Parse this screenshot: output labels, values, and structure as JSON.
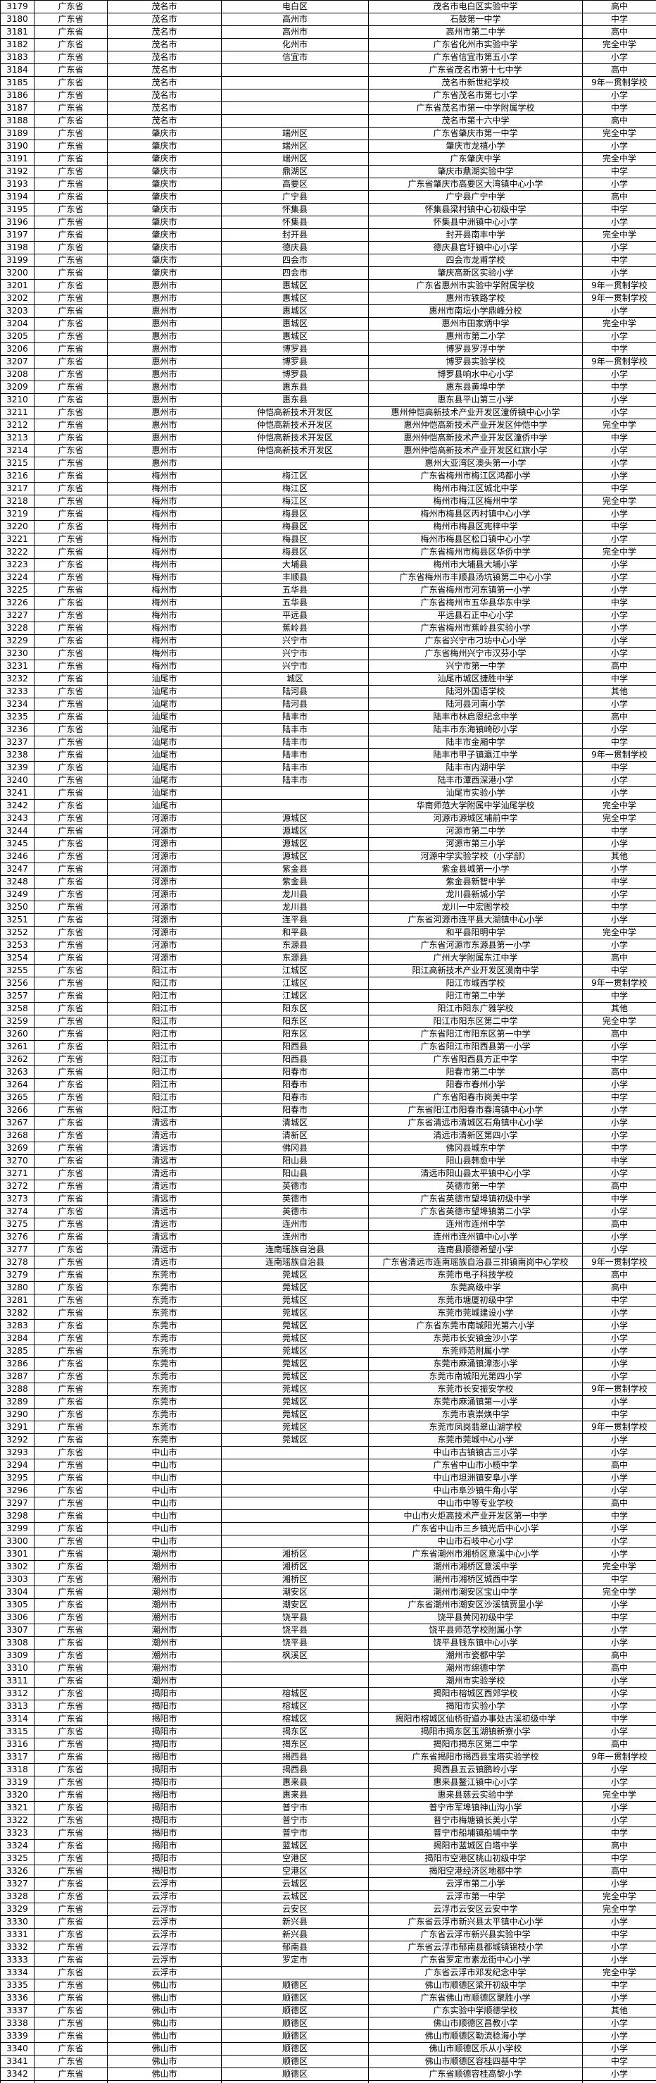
{
  "page": {
    "background_color": "#ffffff",
    "grid_color": "#000000",
    "text_color": "#000000"
  },
  "table": {
    "column_keys": [
      "index",
      "province",
      "city",
      "district",
      "school_name",
      "school_type"
    ],
    "rows": [
      [
        3179,
        "广东省",
        "茂名市",
        "电白区",
        "茂名市电白区实验中学",
        "高中"
      ],
      [
        3180,
        "广东省",
        "茂名市",
        "高州市",
        "石鼓第一中学",
        "中学"
      ],
      [
        3181,
        "广东省",
        "茂名市",
        "高州市",
        "高州市第二中学",
        "高中"
      ],
      [
        3182,
        "广东省",
        "茂名市",
        "化州市",
        "广东省化州市实验中学",
        "完全中学"
      ],
      [
        3183,
        "广东省",
        "茂名市",
        "信宜市",
        "广东省信宜市第五小学",
        "小学"
      ],
      [
        3184,
        "广东省",
        "茂名市",
        "",
        "广东省茂名市第十七中学",
        "高中"
      ],
      [
        3185,
        "广东省",
        "茂名市",
        "",
        "茂名市新世纪学校",
        "9年一贯制学校"
      ],
      [
        3186,
        "广东省",
        "茂名市",
        "",
        "广东省茂名市第七小学",
        "小学"
      ],
      [
        3187,
        "广东省",
        "茂名市",
        "",
        "广东省茂名市第一中学附属学校",
        "中学"
      ],
      [
        3188,
        "广东省",
        "茂名市",
        "",
        "茂名市第十六中学",
        "高中"
      ],
      [
        3189,
        "广东省",
        "肇庆市",
        "端州区",
        "广东省肇庆市第一中学",
        "完全中学"
      ],
      [
        3190,
        "广东省",
        "肇庆市",
        "端州区",
        "肇庆市龙禧小学",
        "小学"
      ],
      [
        3191,
        "广东省",
        "肇庆市",
        "端州区",
        "广东肇庆中学",
        "完全中学"
      ],
      [
        3192,
        "广东省",
        "肇庆市",
        "鼎湖区",
        "肇庆市鼎湖实验中学",
        "中学"
      ],
      [
        3193,
        "广东省",
        "肇庆市",
        "高要区",
        "广东省肇庆市高要区大湾镇中心小学",
        "小学"
      ],
      [
        3194,
        "广东省",
        "肇庆市",
        "广宁县",
        "广宁县广宁中学",
        "高中"
      ],
      [
        3195,
        "广东省",
        "肇庆市",
        "怀集县",
        "怀集县梁村镇中心初级中学",
        "中学"
      ],
      [
        3196,
        "广东省",
        "肇庆市",
        "怀集县",
        "怀集县中洲镇中心小学",
        "小学"
      ],
      [
        3197,
        "广东省",
        "肇庆市",
        "封开县",
        "封开县南丰中学",
        "完全中学"
      ],
      [
        3198,
        "广东省",
        "肇庆市",
        "德庆县",
        "德庆县官圩镇中心小学",
        "小学"
      ],
      [
        3199,
        "广东省",
        "肇庆市",
        "四会市",
        "四会市龙甫学校",
        "中学"
      ],
      [
        3200,
        "广东省",
        "肇庆市",
        "四会市",
        "肇庆高新区实验小学",
        "小学"
      ],
      [
        3201,
        "广东省",
        "惠州市",
        "惠城区",
        "广东省惠州市实验中学附属学校",
        "9年一贯制学校"
      ],
      [
        3202,
        "广东省",
        "惠州市",
        "惠城区",
        "惠州市铁路学校",
        "9年一贯制学校"
      ],
      [
        3203,
        "广东省",
        "惠州市",
        "惠城区",
        "惠州市南坛小学鼎峰分校",
        "小学"
      ],
      [
        3204,
        "广东省",
        "惠州市",
        "惠城区",
        "惠州市田家炳中学",
        "完全中学"
      ],
      [
        3205,
        "广东省",
        "惠州市",
        "惠城区",
        "惠州市第二小学",
        "小学"
      ],
      [
        3206,
        "广东省",
        "惠州市",
        "博罗县",
        "博罗县罗浮中学",
        "中学"
      ],
      [
        3207,
        "广东省",
        "惠州市",
        "博罗县",
        "博罗县实验学校",
        "9年一贯制学校"
      ],
      [
        3208,
        "广东省",
        "惠州市",
        "博罗县",
        "博罗县响水中心小学",
        "小学"
      ],
      [
        3209,
        "广东省",
        "惠州市",
        "惠东县",
        "惠东县黄埠中学",
        "中学"
      ],
      [
        3210,
        "广东省",
        "惠州市",
        "惠东县",
        "惠东县平山第三小学",
        "小学"
      ],
      [
        3211,
        "广东省",
        "惠州市",
        "仲恺高新技术开发区",
        "惠州仲恺高新技术产业开发区潼侨镇中心小学",
        "小学"
      ],
      [
        3212,
        "广东省",
        "惠州市",
        "仲恺高新技术开发区",
        "惠州仲恺高新技术产业开发区仲恺中学",
        "完全中学"
      ],
      [
        3213,
        "广东省",
        "惠州市",
        "仲恺高新技术开发区",
        "惠州仲恺高新技术产业开发区潼侨中学",
        "中学"
      ],
      [
        3214,
        "广东省",
        "惠州市",
        "仲恺高新技术开发区",
        "惠州仲恺高新技术产业开发区红旗小学",
        "小学"
      ],
      [
        3215,
        "广东省",
        "惠州市",
        "",
        "惠州大亚湾区澳头第一小学",
        "小学"
      ],
      [
        3216,
        "广东省",
        "梅州市",
        "梅江区",
        "广东省梅州市梅江区鸿都小学",
        "小学"
      ],
      [
        3217,
        "广东省",
        "梅州市",
        "梅江区",
        "梅州市梅江区城北中学",
        "中学"
      ],
      [
        3218,
        "广东省",
        "梅州市",
        "梅江区",
        "梅州市梅江区梅州中学",
        "完全中学"
      ],
      [
        3219,
        "广东省",
        "梅州市",
        "梅县区",
        "梅州市梅县区丙村镇中心小学",
        "小学"
      ],
      [
        3220,
        "广东省",
        "梅州市",
        "梅县区",
        "梅州市梅县区宪梓中学",
        "中学"
      ],
      [
        3221,
        "广东省",
        "梅州市",
        "梅县区",
        "梅州市梅县区松口镇中心小学",
        "小学"
      ],
      [
        3222,
        "广东省",
        "梅州市",
        "梅县区",
        "广东省梅州市梅县区华侨中学",
        "完全中学"
      ],
      [
        3223,
        "广东省",
        "梅州市",
        "大埔县",
        "梅州市大埔县大埔小学",
        "小学"
      ],
      [
        3224,
        "广东省",
        "梅州市",
        "丰顺县",
        "广东省梅州市丰顺县汤坑镇第二中心小学",
        "小学"
      ],
      [
        3225,
        "广东省",
        "梅州市",
        "五华县",
        "广东省梅州市河东镇第一小学",
        "小学"
      ],
      [
        3226,
        "广东省",
        "梅州市",
        "五华县",
        "广东省梅州市五华县华东中学",
        "中学"
      ],
      [
        3227,
        "广东省",
        "梅州市",
        "平远县",
        "平远县石正中心小学",
        "小学"
      ],
      [
        3228,
        "广东省",
        "梅州市",
        "蕉岭县",
        "广东省梅州市蕉岭县实验小学",
        "小学"
      ],
      [
        3229,
        "广东省",
        "梅州市",
        "兴宁市",
        "广东省兴宁市刁坊中心小学",
        "小学"
      ],
      [
        3230,
        "广东省",
        "梅州市",
        "兴宁市",
        "广东省梅州兴宁市汉芬小学",
        "小学"
      ],
      [
        3231,
        "广东省",
        "梅州市",
        "兴宁市",
        "兴宁市第一中学",
        "高中"
      ],
      [
        3232,
        "广东省",
        "汕尾市",
        "城区",
        "汕尾市城区捷胜中学",
        "中学"
      ],
      [
        3233,
        "广东省",
        "汕尾市",
        "陆河县",
        "陆河外国语学校",
        "其他"
      ],
      [
        3234,
        "广东省",
        "汕尾市",
        "陆河县",
        "陆河县河南小学",
        "小学"
      ],
      [
        3235,
        "广东省",
        "汕尾市",
        "陆丰市",
        "陆丰市林启恩纪念中学",
        "高中"
      ],
      [
        3236,
        "广东省",
        "汕尾市",
        "陆丰市",
        "陆丰市东海镇崎砂小学",
        "小学"
      ],
      [
        3237,
        "广东省",
        "汕尾市",
        "陆丰市",
        "陆丰市金厢中学",
        "中学"
      ],
      [
        3238,
        "广东省",
        "汕尾市",
        "陆丰市",
        "陆丰市甲子镇瀛江中学",
        "9年一贯制学校"
      ],
      [
        3239,
        "广东省",
        "汕尾市",
        "陆丰市",
        "陆丰市内湖中学",
        "中学"
      ],
      [
        3240,
        "广东省",
        "汕尾市",
        "陆丰市",
        "陆丰市潭西深港小学",
        "小学"
      ],
      [
        3241,
        "广东省",
        "汕尾市",
        "",
        "汕尾市实验小学",
        "小学"
      ],
      [
        3242,
        "广东省",
        "汕尾市",
        "",
        "华南师范大学附属中学汕尾学校",
        "完全中学"
      ],
      [
        3243,
        "广东省",
        "河源市",
        "源城区",
        "河源市源城区埔前中学",
        "完全中学"
      ],
      [
        3244,
        "广东省",
        "河源市",
        "源城区",
        "河源市第二中学",
        "中学"
      ],
      [
        3245,
        "广东省",
        "河源市",
        "源城区",
        "河源市第三小学",
        "小学"
      ],
      [
        3246,
        "广东省",
        "河源市",
        "源城区",
        "河源中学实验学校（小学部）",
        "其他"
      ],
      [
        3247,
        "广东省",
        "河源市",
        "紫金县",
        "紫金县城第一小学",
        "小学"
      ],
      [
        3248,
        "广东省",
        "河源市",
        "紫金县",
        "紫金县新智中学",
        "中学"
      ],
      [
        3249,
        "广东省",
        "河源市",
        "龙川县",
        "龙川县新城小学",
        "小学"
      ],
      [
        3250,
        "广东省",
        "河源市",
        "龙川县",
        "龙川一中宏图学校",
        "中学"
      ],
      [
        3251,
        "广东省",
        "河源市",
        "连平县",
        "广东省河源市连平县大湖镇中心小学",
        "小学"
      ],
      [
        3252,
        "广东省",
        "河源市",
        "和平县",
        "和平县阳明中学",
        "完全中学"
      ],
      [
        3253,
        "广东省",
        "河源市",
        "东源县",
        "广东省河源市东源县第一小学",
        "小学"
      ],
      [
        3254,
        "广东省",
        "河源市",
        "东源县",
        "广州大学附属东江中学",
        "高中"
      ],
      [
        3255,
        "广东省",
        "阳江市",
        "江城区",
        "阳江高新技术产业开发区漠南中学",
        "中学"
      ],
      [
        3256,
        "广东省",
        "阳江市",
        "江城区",
        "阳江市城西学校",
        "9年一贯制学校"
      ],
      [
        3257,
        "广东省",
        "阳江市",
        "江城区",
        "阳江市第二中学",
        "中学"
      ],
      [
        3258,
        "广东省",
        "阳江市",
        "阳东区",
        "阳江市阳东广雅学校",
        "其他"
      ],
      [
        3259,
        "广东省",
        "阳江市",
        "阳东区",
        "阳江市阳东区第二中学",
        "完全中学"
      ],
      [
        3260,
        "广东省",
        "阳江市",
        "阳东区",
        "广东省阳江市阳东区第一中学",
        "高中"
      ],
      [
        3261,
        "广东省",
        "阳江市",
        "阳西县",
        "广东省阳江市阳西县第一小学",
        "小学"
      ],
      [
        3262,
        "广东省",
        "阳江市",
        "阳西县",
        "广东省阳西县方正中学",
        "中学"
      ],
      [
        3263,
        "广东省",
        "阳江市",
        "阳春市",
        "阳春市第二中学",
        "高中"
      ],
      [
        3264,
        "广东省",
        "阳江市",
        "阳春市",
        "阳春市春州小学",
        "小学"
      ],
      [
        3265,
        "广东省",
        "阳江市",
        "阳春市",
        "广东省阳春市岗美中学",
        "中学"
      ],
      [
        3266,
        "广东省",
        "阳江市",
        "阳春市",
        "广东省阳江市阳春市春湾镇中心小学",
        "小学"
      ],
      [
        3267,
        "广东省",
        "清远市",
        "清城区",
        "广东省清远市清城区石角镇中心小学",
        "小学"
      ],
      [
        3268,
        "广东省",
        "清远市",
        "清新区",
        "清远市清新区第四小学",
        "小学"
      ],
      [
        3269,
        "广东省",
        "清远市",
        "佛冈县",
        "佛冈县城东中学",
        "中学"
      ],
      [
        3270,
        "广东省",
        "清远市",
        "阳山县",
        "阳山县韩愈中学",
        "中学"
      ],
      [
        3271,
        "广东省",
        "清远市",
        "阳山县",
        "清远市阳山县太平镇中心小学",
        "小学"
      ],
      [
        3272,
        "广东省",
        "清远市",
        "英德市",
        "英德市第一中学",
        "高中"
      ],
      [
        3273,
        "广东省",
        "清远市",
        "英德市",
        "广东省英德市望埠镇初级中学",
        "中学"
      ],
      [
        3274,
        "广东省",
        "清远市",
        "英德市",
        "广东省英德市望埠镇第二小学",
        "小学"
      ],
      [
        3275,
        "广东省",
        "清远市",
        "连州市",
        "连州市连州中学",
        "高中"
      ],
      [
        3276,
        "广东省",
        "清远市",
        "连州市",
        "连州市连州镇中心小学",
        "小学"
      ],
      [
        3277,
        "广东省",
        "清远市",
        "连南瑶族自治县",
        "连南县顺德希望小学",
        "小学"
      ],
      [
        3278,
        "广东省",
        "清远市",
        "连南瑶族自治县",
        "广东省清远市连南瑶族自治县三排镇南岗中心学校",
        "9年一贯制学校"
      ],
      [
        3279,
        "广东省",
        "东莞市",
        "莞城区",
        "东莞市电子科技学校",
        "高中"
      ],
      [
        3280,
        "广东省",
        "东莞市",
        "莞城区",
        "东莞高级中学",
        "高中"
      ],
      [
        3281,
        "广东省",
        "东莞市",
        "莞城区",
        "东莞市塘厦初级中学",
        "中学"
      ],
      [
        3282,
        "广东省",
        "东莞市",
        "莞城区",
        "东莞市莞城建设小学",
        "小学"
      ],
      [
        3283,
        "广东省",
        "东莞市",
        "莞城区",
        "广东省东莞市南城阳光第六小学",
        "小学"
      ],
      [
        3284,
        "广东省",
        "东莞市",
        "莞城区",
        "东莞市长安镇金沙小学",
        "小学"
      ],
      [
        3285,
        "广东省",
        "东莞市",
        "莞城区",
        "东莞师范附属小学",
        "小学"
      ],
      [
        3286,
        "广东省",
        "东莞市",
        "莞城区",
        "东莞市麻涌镇漳澎小学",
        "小学"
      ],
      [
        3287,
        "广东省",
        "东莞市",
        "莞城区",
        "东莞市南城阳光第四小学",
        "小学"
      ],
      [
        3288,
        "广东省",
        "东莞市",
        "莞城区",
        "东莞市长安振安学校",
        "9年一贯制学校"
      ],
      [
        3289,
        "广东省",
        "东莞市",
        "莞城区",
        "东莞市麻涌镇第一小学",
        "小学"
      ],
      [
        3290,
        "广东省",
        "东莞市",
        "莞城区",
        "东莞市袁崇焕中学",
        "中学"
      ],
      [
        3291,
        "广东省",
        "东莞市",
        "莞城区",
        "东莞市凤岗翡翠山湖学校",
        "9年一贯制学校"
      ],
      [
        3292,
        "广东省",
        "东莞市",
        "莞城区",
        "东莞市莞城中心小学",
        "小学"
      ],
      [
        3293,
        "广东省",
        "中山市",
        "",
        "中山市古镇镇古三小学",
        "小学"
      ],
      [
        3294,
        "广东省",
        "中山市",
        "",
        "广东省中山市小榄中学",
        "高中"
      ],
      [
        3295,
        "广东省",
        "中山市",
        "",
        "中山市坦洲镇安阜小学",
        "小学"
      ],
      [
        3296,
        "广东省",
        "中山市",
        "",
        "中山市阜沙镇牛角小学",
        "小学"
      ],
      [
        3297,
        "广东省",
        "中山市",
        "",
        "中山市中等专业学校",
        "高中"
      ],
      [
        3298,
        "广东省",
        "中山市",
        "",
        "中山市火炬高技术产业开发区第一中学",
        "中学"
      ],
      [
        3299,
        "广东省",
        "中山市",
        "",
        "广东省中山市三乡镇光后中心小学",
        "小学"
      ],
      [
        3300,
        "广东省",
        "中山市",
        "",
        "中山市石岐中心小学",
        "小学"
      ],
      [
        3301,
        "广东省",
        "潮州市",
        "湘桥区",
        "广东省潮州市湘桥区意溪中心小学",
        "小学"
      ],
      [
        3302,
        "广东省",
        "潮州市",
        "湘桥区",
        "潮州市湘桥区意溪中学",
        "完全中学"
      ],
      [
        3303,
        "广东省",
        "潮州市",
        "湘桥区",
        "潮州市湘桥区城西中学",
        "中学"
      ],
      [
        3304,
        "广东省",
        "潮州市",
        "潮安区",
        "潮州市潮安区宝山中学",
        "完全中学"
      ],
      [
        3305,
        "广东省",
        "潮州市",
        "潮安区",
        "广东省潮州市潮安区沙溪镇贾里小学",
        "小学"
      ],
      [
        3306,
        "广东省",
        "潮州市",
        "饶平县",
        "饶平县黄冈初级中学",
        "中学"
      ],
      [
        3307,
        "广东省",
        "潮州市",
        "饶平县",
        "饶平县师范学校附属小学",
        "小学"
      ],
      [
        3308,
        "广东省",
        "潮州市",
        "饶平县",
        "饶平县钱东镇中心小学",
        "小学"
      ],
      [
        3309,
        "广东省",
        "潮州市",
        "枫溪区",
        "潮州市瓷都中学",
        "高中"
      ],
      [
        3310,
        "广东省",
        "潮州市",
        "",
        "潮州市绵德中学",
        "高中"
      ],
      [
        3311,
        "广东省",
        "潮州市",
        "",
        "潮州市实验学校",
        "小学"
      ],
      [
        3312,
        "广东省",
        "揭阳市",
        "榕城区",
        "揭阳市榕城区西郊学校",
        "小学"
      ],
      [
        3313,
        "广东省",
        "揭阳市",
        "榕城区",
        "揭阳市实验小学",
        "小学"
      ],
      [
        3314,
        "广东省",
        "揭阳市",
        "榕城区",
        "揭阳市榕城区仙桥街道办事处古溪初级中学",
        "中学"
      ],
      [
        3315,
        "广东省",
        "揭阳市",
        "揭东区",
        "揭阳市揭东区玉湖镇新寮小学",
        "小学"
      ],
      [
        3316,
        "广东省",
        "揭阳市",
        "揭东区",
        "揭阳市揭东区第二中学",
        "高中"
      ],
      [
        3317,
        "广东省",
        "揭阳市",
        "揭西县",
        "广东省揭阳市揭西县宝塔实验学校",
        "9年一贯制学校"
      ],
      [
        3318,
        "广东省",
        "揭阳市",
        "揭西县",
        "揭西县五云镇鹏岭小学",
        "小学"
      ],
      [
        3319,
        "广东省",
        "揭阳市",
        "惠来县",
        "惠来县鳌江镇中心小学",
        "小学"
      ],
      [
        3320,
        "广东省",
        "揭阳市",
        "惠来县",
        "惠来县慈云实验中学",
        "完全中学"
      ],
      [
        3321,
        "广东省",
        "揭阳市",
        "普宁市",
        "普宁市军埠镇神山沟小学",
        "小学"
      ],
      [
        3322,
        "广东省",
        "揭阳市",
        "普宁市",
        "普宁市梅塘镇长美小学",
        "小学"
      ],
      [
        3323,
        "广东省",
        "揭阳市",
        "普宁市",
        "普宁市船埔镇船埔中学",
        "中学"
      ],
      [
        3324,
        "广东省",
        "揭阳市",
        "蓝城区",
        "揭阳市蓝城区白塔中学",
        "高中"
      ],
      [
        3325,
        "广东省",
        "揭阳市",
        "空港区",
        "揭阳市空港区桃山初级中学",
        "中学"
      ],
      [
        3326,
        "广东省",
        "揭阳市",
        "空港区",
        "揭阳空港经济区地都中学",
        "高中"
      ],
      [
        3327,
        "广东省",
        "云浮市",
        "云城区",
        "云浮市第二小学",
        "小学"
      ],
      [
        3328,
        "广东省",
        "云浮市",
        "云城区",
        "云浮市第一中学",
        "完全中学"
      ],
      [
        3329,
        "广东省",
        "云浮市",
        "云安区",
        "云浮市云安区云安中学",
        "完全中学"
      ],
      [
        3330,
        "广东省",
        "云浮市",
        "新兴县",
        "广东省云浮市新兴县太平镇中心小学",
        "小学"
      ],
      [
        3331,
        "广东省",
        "云浮市",
        "新兴县",
        "广东省云浮市新兴县实验中学",
        "中学"
      ],
      [
        3332,
        "广东省",
        "云浮市",
        "郁南县",
        "广东省云浮市郁南县都城镇锦枝小学",
        "小学"
      ],
      [
        3333,
        "广东省",
        "云浮市",
        "罗定市",
        "广东省罗定市素龙街中心小学",
        "小学"
      ],
      [
        3334,
        "广东省",
        "云浮市",
        "",
        "广东省云浮市邓发纪念中学",
        "完全中学"
      ],
      [
        3335,
        "广东省",
        "佛山市",
        "顺德区",
        "佛山市顺德区梁开初级中学",
        "中学"
      ],
      [
        3336,
        "广东省",
        "佛山市",
        "顺德区",
        "广东省佛山市顺德区聚胜小学",
        "小学"
      ],
      [
        3337,
        "广东省",
        "佛山市",
        "顺德区",
        "广东实验中学顺德学校",
        "其他"
      ],
      [
        3338,
        "广东省",
        "佛山市",
        "顺德区",
        "佛山市顺德区昌教小学",
        "小学"
      ],
      [
        3339,
        "广东省",
        "佛山市",
        "顺德区",
        "佛山市顺德区勒流稔海小学",
        "小学"
      ],
      [
        3340,
        "广东省",
        "佛山市",
        "顺德区",
        "佛山市顺德区乐从小学校",
        "小学"
      ],
      [
        3341,
        "广东省",
        "佛山市",
        "顺德区",
        "佛山市顺德区容桂四基中学",
        "中学"
      ],
      [
        3342,
        "广东省",
        "佛山市",
        "顺德区",
        "广东省顺德容桂高黎小学",
        "小学"
      ]
    ],
    "partial_row": [
      "",
      "",
      "",
      "",
      "",
      ""
    ]
  }
}
